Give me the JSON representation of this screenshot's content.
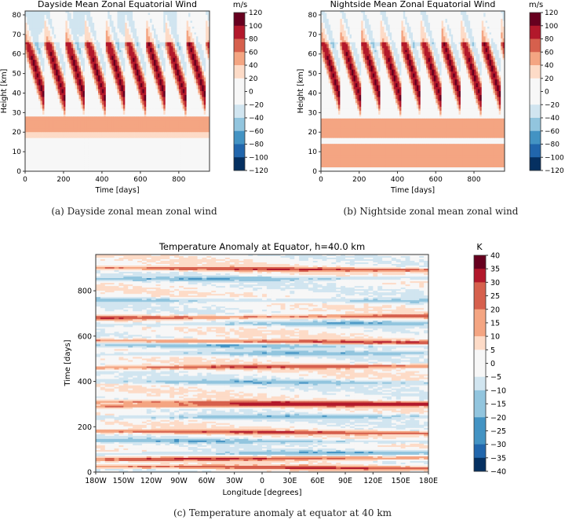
{
  "captions": {
    "a": "(a) Dayside zonal mean zonal wind",
    "b": "(b) Nightside zonal mean zonal wind",
    "c": "(c) Temperature anomaly at equator at 40 km"
  },
  "colors": {
    "diverging": [
      "#053061",
      "#2166ac",
      "#4393c3",
      "#92c5de",
      "#d1e5f0",
      "#f7f7f7",
      "#fddbc7",
      "#f4a582",
      "#d6604d",
      "#b2182b",
      "#67001f"
    ]
  },
  "chart_data": [
    {
      "id": "dayside",
      "type": "heatmap",
      "title": "Dayside Mean Zonal Equatorial Wind",
      "xlabel": "Time [days]",
      "ylabel": "Height [km]",
      "xlim": [
        0,
        960
      ],
      "ylim": [
        0,
        82
      ],
      "xticks": [
        0,
        200,
        400,
        600,
        800
      ],
      "yticks": [
        0,
        10,
        20,
        30,
        40,
        50,
        60,
        70,
        80
      ],
      "colorbar": {
        "label": "m/s",
        "ticks": [
          120,
          100,
          80,
          60,
          40,
          20,
          0,
          -20,
          -40,
          -60,
          -80,
          -100,
          -120
        ],
        "tick_labels": [
          "120",
          "100",
          "80",
          "60",
          "40",
          "20",
          "0",
          "−20",
          "−40",
          "−60",
          "−80",
          "−100",
          "−120"
        ]
      },
      "features": {
        "constant_layers": [
          {
            "height": [
              17,
              20
            ],
            "wind": 35
          },
          {
            "height": [
              20,
              28
            ],
            "wind": 48
          }
        ],
        "descending_jet_period_days": 105,
        "jet_core_wind": 110,
        "westward_upper_wind": -40
      }
    },
    {
      "id": "nightside",
      "type": "heatmap",
      "title": "Nightside Mean Zonal Equatorial Wind",
      "xlabel": "Time [days]",
      "ylabel": "Height [km]",
      "xlim": [
        0,
        960
      ],
      "ylim": [
        0,
        82
      ],
      "xticks": [
        0,
        200,
        400,
        600,
        800
      ],
      "yticks": [
        0,
        10,
        20,
        30,
        40,
        50,
        60,
        70,
        80
      ],
      "colorbar": {
        "label": "m/s",
        "ticks": [
          120,
          100,
          80,
          60,
          40,
          20,
          0,
          -20,
          -40,
          -60,
          -80,
          -100,
          -120
        ],
        "tick_labels": [
          "120",
          "100",
          "80",
          "60",
          "40",
          "20",
          "0",
          "−20",
          "−40",
          "−60",
          "−80",
          "−100",
          "−120"
        ]
      },
      "features": {
        "constant_layers": [
          {
            "height": [
              2,
              14
            ],
            "wind": 48
          },
          {
            "height": [
              14,
              17
            ],
            "wind": 10
          },
          {
            "height": [
              17,
              27
            ],
            "wind": 48
          }
        ],
        "descending_jet_period_days": 105,
        "jet_core_wind": 110,
        "westward_upper_wind": -30
      }
    },
    {
      "id": "temperature",
      "type": "heatmap",
      "title": "Temperature Anomaly at Equator, h=40.0 km",
      "xlabel": "Longitude [degrees]",
      "ylabel": "Time [days]",
      "xlim": [
        -180,
        180
      ],
      "ylim": [
        0,
        960
      ],
      "xticks": [
        -180,
        -150,
        -120,
        -90,
        -60,
        -30,
        0,
        30,
        60,
        90,
        120,
        150,
        180
      ],
      "xtick_labels": [
        "180W",
        "150W",
        "120W",
        "90W",
        "60W",
        "30W",
        "0",
        "30E",
        "60E",
        "90E",
        "120E",
        "150E",
        "180E"
      ],
      "yticks": [
        0,
        200,
        400,
        600,
        800
      ],
      "colorbar": {
        "label": "K",
        "ticks": [
          40,
          35,
          30,
          25,
          20,
          15,
          10,
          5,
          0,
          -5,
          -10,
          -15,
          -20,
          -25,
          -30,
          -35,
          -40
        ],
        "tick_labels": [
          "40",
          "35",
          "30",
          "25",
          "20",
          "15",
          "10",
          "5",
          "0",
          "−5",
          "−10",
          "−15",
          "−20",
          "−25",
          "−30",
          "−35",
          "−40"
        ]
      },
      "features": {
        "warm_bands_days": [
          25,
          55,
          180,
          290,
          310,
          460,
          580,
          680,
          900
        ],
        "cool_bands_days": [
          80,
          140,
          240,
          400,
          520,
          560,
          650,
          760,
          850
        ],
        "peak_anomaly": 32
      }
    }
  ]
}
